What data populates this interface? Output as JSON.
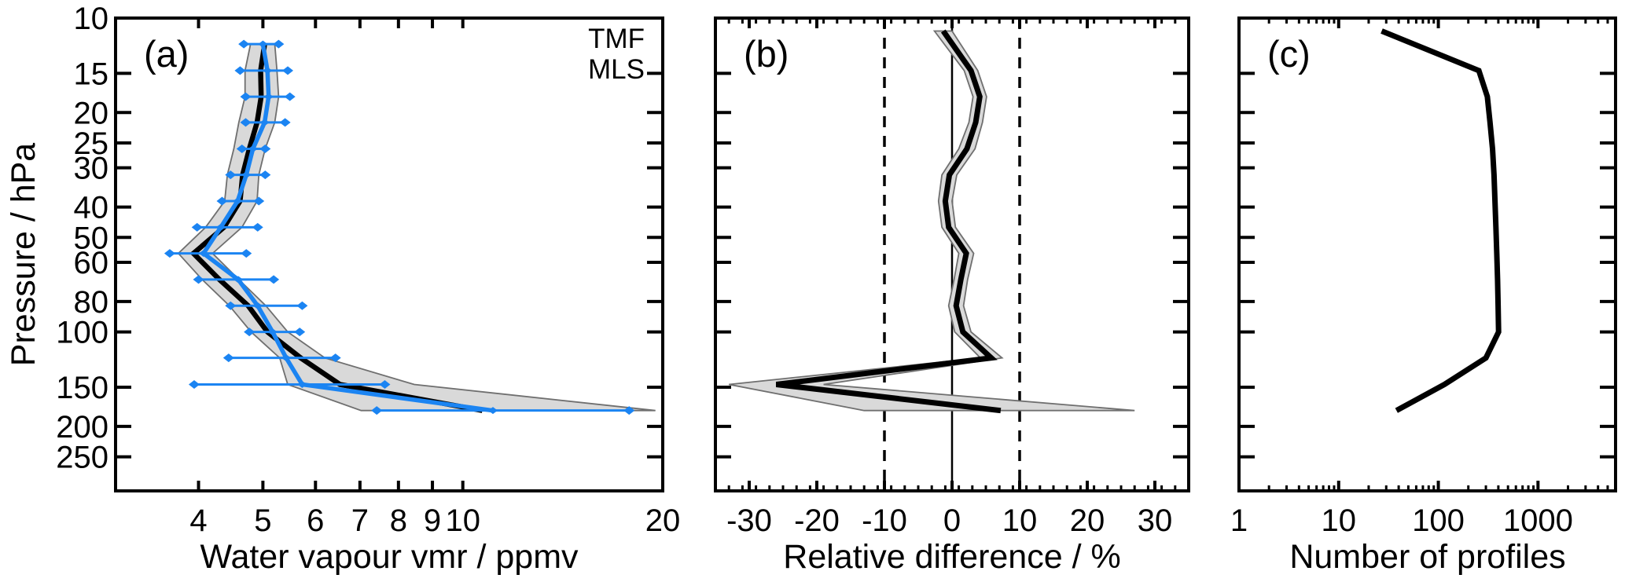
{
  "figure": {
    "background": "#ffffff",
    "ylabel": "Pressure / hPa",
    "pressure_ticks": [
      10,
      15,
      20,
      25,
      30,
      40,
      50,
      60,
      80,
      100,
      150,
      200,
      250
    ],
    "pressure_range": [
      10,
      321
    ],
    "colors": {
      "tmf": "#000000",
      "mls": "#1b84f2",
      "band_fill": "#d9d9d9",
      "band_outline": "#6f6f6f",
      "frame": "#000000"
    }
  },
  "chart_data": [
    {
      "id": "a",
      "label": "(a)",
      "type": "line",
      "xlabel": "Water vapour vmr / ppmv",
      "xscale": "log",
      "xlim": [
        3,
        20
      ],
      "xticks": [
        4,
        5,
        6,
        7,
        8,
        9,
        10,
        20
      ],
      "legend_position": "top-right",
      "legend": [
        {
          "text": "TMF",
          "color": "#000000"
        },
        {
          "text": "MLS",
          "color": "#1b84f2"
        }
      ],
      "pressure": [
        12.1,
        14.7,
        17.8,
        21.5,
        26.1,
        31.6,
        38.3,
        46.4,
        56.2,
        68.1,
        82.5,
        100,
        121,
        147,
        178
      ],
      "band": {
        "belongs_to": "TMF",
        "low": [
          4.79,
          4.7,
          4.7,
          4.6,
          4.52,
          4.42,
          4.38,
          4.1,
          3.73,
          4.05,
          4.45,
          4.8,
          5.3,
          5.45,
          7.03
        ],
        "high": [
          5.21,
          5.25,
          5.28,
          5.21,
          5.04,
          4.93,
          4.9,
          4.65,
          4.2,
          4.6,
          5.05,
          5.45,
          6.2,
          8.45,
          19.5
        ]
      },
      "series": [
        {
          "name": "TMF",
          "color": "#000000",
          "width": 6.5,
          "values": [
            5.03,
            4.96,
            4.97,
            4.9,
            4.77,
            4.66,
            4.62,
            4.37,
            3.93,
            4.3,
            4.75,
            5.08,
            5.7,
            6.53,
            10.7
          ]
        },
        {
          "name": "MLS",
          "color": "#1b84f2",
          "width": 5.5,
          "values": [
            5.0,
            5.08,
            5.1,
            5.03,
            4.83,
            4.72,
            4.58,
            4.32,
            4.07,
            4.59,
            4.91,
            5.17,
            5.42,
            5.73,
            11.1
          ],
          "error_low": [
            4.68,
            4.62,
            4.71,
            4.71,
            4.65,
            4.47,
            4.34,
            3.98,
            3.62,
            4.0,
            4.47,
            4.77,
            4.44,
            3.94,
            7.42
          ],
          "error_high": [
            5.28,
            5.45,
            5.49,
            5.4,
            5.04,
            5.04,
            4.93,
            4.91,
            4.72,
            5.19,
            5.73,
            5.68,
            6.43,
            7.63,
            17.8
          ]
        }
      ]
    },
    {
      "id": "b",
      "label": "(b)",
      "type": "line",
      "xlabel": "Relative difference / %",
      "xscale": "linear",
      "xlim": [
        -35,
        35
      ],
      "xticks": [
        -30,
        -20,
        -10,
        0,
        10,
        20,
        30
      ],
      "xminor_step": 2,
      "reference_lines": {
        "solid": [
          0
        ],
        "dashed": [
          -10,
          10
        ]
      },
      "pressure": [
        11,
        14.7,
        17.8,
        21.5,
        26.1,
        31.6,
        38.3,
        46.4,
        56.2,
        68.1,
        82.5,
        100,
        121,
        147,
        178
      ],
      "band": {
        "low": [
          -2.6,
          1.8,
          3.1,
          2.5,
          1.0,
          -1.5,
          -2.0,
          -1.5,
          1.0,
          0.3,
          -0.5,
          0.4,
          4.2,
          -33,
          -13
        ],
        "high": [
          0.0,
          3.8,
          5.1,
          4.5,
          3.4,
          0.7,
          0.0,
          0.5,
          3.2,
          2.3,
          1.7,
          2.8,
          7.4,
          -19,
          27
        ]
      },
      "series": [
        {
          "name": "relative difference",
          "color": "#000000",
          "width": 7,
          "values": [
            -1.3,
            2.8,
            4.1,
            3.5,
            2.2,
            -0.4,
            -1.0,
            -0.5,
            2.1,
            1.3,
            0.6,
            1.6,
            5.8,
            -26,
            7.2
          ]
        }
      ]
    },
    {
      "id": "c",
      "label": "(c)",
      "type": "line",
      "xlabel": "Number of profiles",
      "xscale": "log",
      "xlim": [
        1,
        6000
      ],
      "xticks": [
        1,
        10,
        100,
        1000
      ],
      "log_minor_ticks": true,
      "pressure": [
        11,
        14.7,
        17.8,
        21.5,
        26.1,
        31.6,
        38.3,
        46.4,
        56.2,
        68.1,
        82.5,
        100,
        121,
        147,
        178
      ],
      "series": [
        {
          "name": "Number of profiles",
          "color": "#000000",
          "width": 7,
          "values": [
            27,
            255,
            310,
            330,
            350,
            362,
            370,
            378,
            386,
            393,
            398,
            402,
            300,
            115,
            38
          ]
        }
      ]
    }
  ]
}
